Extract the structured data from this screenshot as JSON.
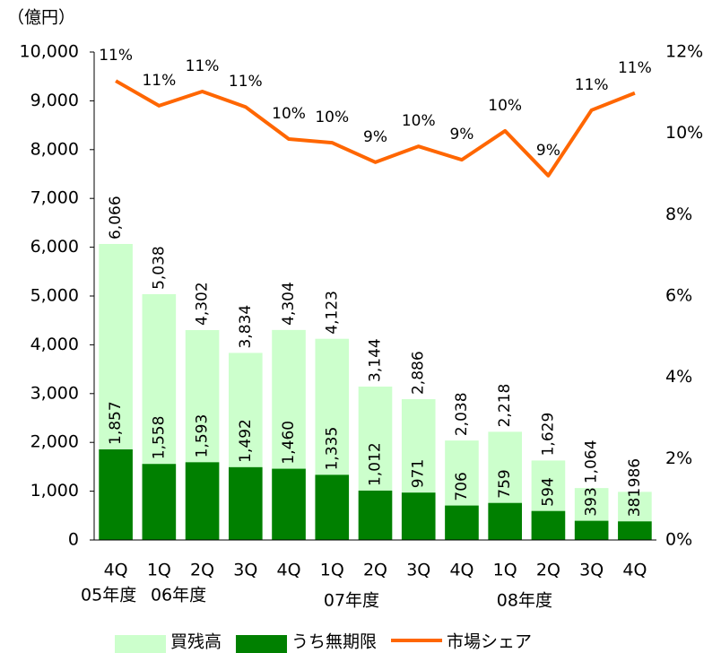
{
  "chart_data": {
    "type": "bar_line",
    "unit_label": "（億円）",
    "categories": [
      "4Q",
      "1Q",
      "2Q",
      "3Q",
      "4Q",
      "1Q",
      "2Q",
      "3Q",
      "4Q",
      "1Q",
      "2Q",
      "3Q",
      "4Q"
    ],
    "year_labels": [
      {
        "label": "05年度",
        "at": 0
      },
      {
        "label": "06年度",
        "at": 1
      },
      {
        "label": "07年度",
        "at": 5
      },
      {
        "label": "08年度",
        "at": 9
      }
    ],
    "series": [
      {
        "name": "買残高",
        "kind": "bar",
        "color": "#ccffcc",
        "values": [
          6066,
          5038,
          4302,
          3834,
          4304,
          4123,
          3144,
          2886,
          2038,
          2218,
          1629,
          1064,
          986
        ],
        "value_labels": [
          "6,066",
          "5,038",
          "4,302",
          "3,834",
          "4,304",
          "4,123",
          "3,144",
          "2,886",
          "2,038",
          "2,218",
          "1,629",
          "1,064",
          "986"
        ]
      },
      {
        "name": "うち無期限",
        "kind": "bar",
        "color": "#008000",
        "values": [
          1857,
          1558,
          1593,
          1492,
          1460,
          1335,
          1012,
          971,
          706,
          759,
          594,
          393,
          381
        ],
        "value_labels": [
          "1,857",
          "1,558",
          "1,593",
          "1,492",
          "1,460",
          "1,335",
          "1,012",
          "971",
          "706",
          "759",
          "594",
          "393",
          "381"
        ]
      },
      {
        "name": "市場シェア",
        "kind": "line",
        "axis": "y2",
        "color": "#ff6600",
        "values": [
          11.29,
          10.68,
          11.03,
          10.65,
          9.86,
          9.77,
          9.29,
          9.68,
          9.35,
          10.06,
          8.96,
          10.57,
          10.99
        ],
        "value_labels": [
          "11%",
          "11%",
          "11%",
          "11%",
          "10%",
          "10%",
          "9%",
          "10%",
          "9%",
          "10%",
          "9%",
          "11%",
          "11%"
        ]
      }
    ],
    "ylim": [
      0,
      10000
    ],
    "yticks": [
      0,
      {
        "value": 1000,
        "label": "1,000"
      },
      {
        "value": 2000,
        "label": "2,000"
      },
      {
        "value": 3000,
        "label": "3,000"
      },
      {
        "value": 4000,
        "label": "4,000"
      },
      {
        "value": 5000,
        "label": "5,000"
      },
      {
        "value": 6000,
        "label": "6,000"
      },
      {
        "value": 7000,
        "label": "7,000"
      },
      {
        "value": 8000,
        "label": "8,000"
      },
      {
        "value": 9000,
        "label": "9,000"
      },
      {
        "value": 10000,
        "label": "10,000"
      }
    ],
    "y2lim": [
      0,
      12
    ],
    "y2ticks": [
      {
        "value": 0,
        "label": "0%"
      },
      {
        "value": 2,
        "label": "2%"
      },
      {
        "value": 4,
        "label": "4%"
      },
      {
        "value": 6,
        "label": "6%"
      },
      {
        "value": 8,
        "label": "8%"
      },
      {
        "value": 10,
        "label": "10%"
      },
      {
        "value": 12,
        "label": "12%"
      }
    ],
    "legend": "bottom"
  }
}
